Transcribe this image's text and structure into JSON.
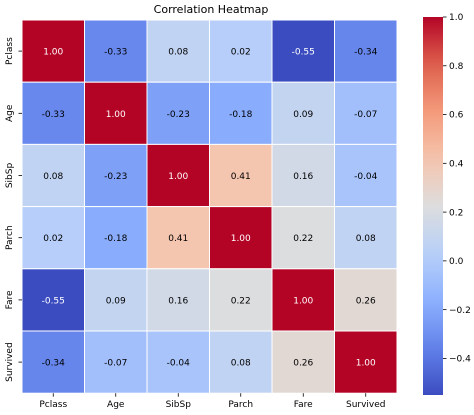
{
  "chart_data": {
    "type": "heatmap",
    "title": "Correlation Heatmap",
    "row_labels": [
      "Pclass",
      "Age",
      "SibSp",
      "Parch",
      "Fare",
      "Survived"
    ],
    "col_labels": [
      "Pclass",
      "Age",
      "SibSp",
      "Parch",
      "Fare",
      "Survived"
    ],
    "values": [
      [
        1.0,
        -0.33,
        0.08,
        0.02,
        -0.55,
        -0.34
      ],
      [
        -0.33,
        1.0,
        -0.23,
        -0.18,
        0.09,
        -0.07
      ],
      [
        0.08,
        -0.23,
        1.0,
        0.41,
        0.16,
        -0.04
      ],
      [
        0.02,
        -0.18,
        0.41,
        1.0,
        0.22,
        0.08
      ],
      [
        -0.55,
        0.09,
        0.16,
        0.22,
        1.0,
        0.26
      ],
      [
        -0.34,
        -0.07,
        -0.04,
        0.08,
        0.26,
        1.0
      ]
    ],
    "annotation_labels": [
      [
        "1.00",
        "-0.33",
        "0.08",
        "0.02",
        "-0.55",
        "-0.34"
      ],
      [
        "-0.33",
        "1.00",
        "-0.23",
        "-0.18",
        "0.09",
        "-0.07"
      ],
      [
        "0.08",
        "-0.23",
        "1.00",
        "0.41",
        "0.16",
        "-0.04"
      ],
      [
        "0.02",
        "-0.18",
        "0.41",
        "1.00",
        "0.22",
        "0.08"
      ],
      [
        "-0.55",
        "0.09",
        "0.16",
        "0.22",
        "1.00",
        "0.26"
      ],
      [
        "-0.34",
        "-0.07",
        "-0.04",
        "0.08",
        "0.26",
        "1.00"
      ]
    ],
    "colormap": "coolwarm",
    "vmin": -0.55,
    "vmax": 1.0,
    "colorbar_ticks": [
      {
        "value": 1.0,
        "label": "1.0"
      },
      {
        "value": 0.8,
        "label": "0.8"
      },
      {
        "value": 0.6,
        "label": "0.6"
      },
      {
        "value": 0.4,
        "label": "0.4"
      },
      {
        "value": 0.2,
        "label": "0.2"
      },
      {
        "value": 0.0,
        "label": "0.0"
      },
      {
        "value": -0.2,
        "label": "−0.2"
      },
      {
        "value": -0.4,
        "label": "−0.4"
      }
    ],
    "grid": false,
    "legend": "colorbar-right"
  }
}
